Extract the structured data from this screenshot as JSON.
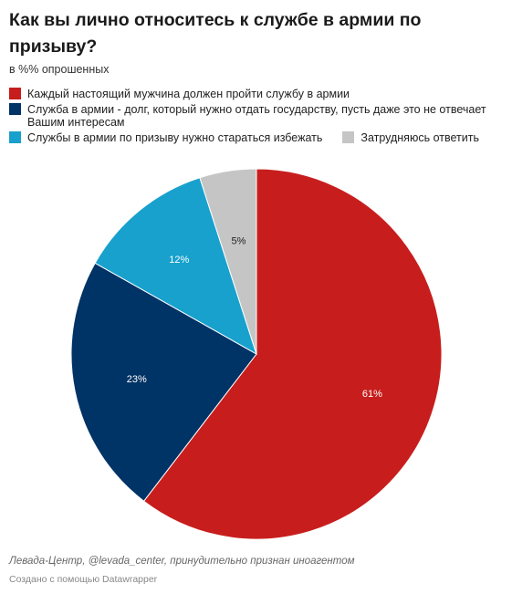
{
  "chart_data": {
    "type": "pie",
    "title": "Как вы лично относитесь к службе в армии по призыву?",
    "subtitle": "в %% опрошенных",
    "slices": [
      {
        "label": "Каждый настоящий мужчина должен пройти службу в армии",
        "value": 61,
        "value_label": "61%",
        "color": "#c71e1d"
      },
      {
        "label": "Служба в армии - долг, который нужно отдать государству, пусть даже это не отвечает Вашим интересам",
        "value": 23,
        "value_label": "23%",
        "color": "#003366"
      },
      {
        "label": "Службы в армии по призыву нужно стараться избежать",
        "value": 12,
        "value_label": "12%",
        "color": "#18a1cd"
      },
      {
        "label": "Затрудняюсь ответить",
        "value": 5,
        "value_label": "5%",
        "color": "#c5c5c5"
      }
    ],
    "legend_placement": "top"
  },
  "footer": {
    "source": "Левада-Центр, @levada_center, принудительно признан иноагентом",
    "credit": "Создано с помощью Datawrapper"
  }
}
